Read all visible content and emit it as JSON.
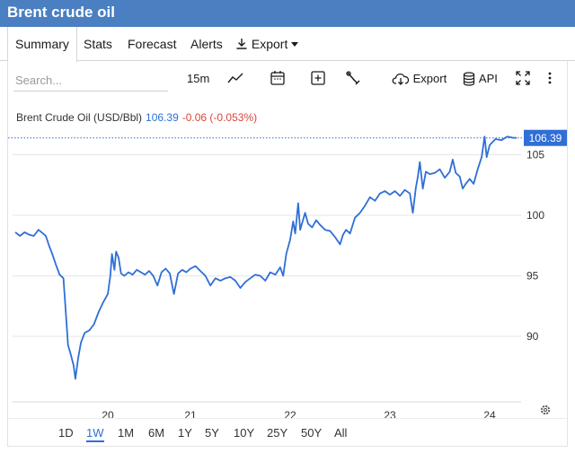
{
  "header": {
    "title": "Brent crude oil"
  },
  "tabs": [
    {
      "label": "Summary",
      "active": true
    },
    {
      "label": "Stats"
    },
    {
      "label": "Forecast"
    },
    {
      "label": "Alerts"
    },
    {
      "label": "Export"
    }
  ],
  "toolbar": {
    "search_placeholder": "Search...",
    "interval": "15m",
    "export_label": "Export",
    "api_label": "API",
    "icons": [
      "line-chart-icon",
      "calendar-icon",
      "plus-box-icon",
      "wrench-icon",
      "cloud-download-icon",
      "database-icon",
      "expand-icon",
      "more-vertical-icon"
    ]
  },
  "legend": {
    "instrument": "Brent Crude Oil (USD/Bbl)",
    "price": "106.39",
    "change": "-0.06 (-0.053%)"
  },
  "ranges": [
    "1D",
    "1W",
    "1M",
    "6M",
    "1Y",
    "5Y",
    "10Y",
    "25Y",
    "50Y",
    "All"
  ],
  "active_range": "1W",
  "colors": {
    "header": "#4a7fc1",
    "line": "#2f6fd6",
    "negative": "#d9443c"
  },
  "chart_data": {
    "type": "line",
    "title": "",
    "x_ticks": [
      "20",
      "21",
      "22",
      "23",
      "24"
    ],
    "y_ticks": [
      90,
      95,
      100,
      105
    ],
    "ylim": [
      85,
      108
    ],
    "xlim": [
      19.0,
      24.35
    ],
    "last_price_label": "106.39",
    "last_price": 106.39,
    "grid": "horizontal",
    "series": [
      {
        "values": [
          [
            19.0,
            98.6
          ],
          [
            19.05,
            98.3
          ],
          [
            19.1,
            98.6
          ],
          [
            19.15,
            98.4
          ],
          [
            19.2,
            98.3
          ],
          [
            19.25,
            98.8
          ],
          [
            19.3,
            98.5
          ],
          [
            19.33,
            98.3
          ],
          [
            19.36,
            97.6
          ],
          [
            19.4,
            96.8
          ],
          [
            19.44,
            95.9
          ],
          [
            19.48,
            95.1
          ],
          [
            19.52,
            94.8
          ],
          [
            19.55,
            91.5
          ],
          [
            19.57,
            89.3
          ],
          [
            19.6,
            88.5
          ],
          [
            19.63,
            87.6
          ],
          [
            19.65,
            86.5
          ],
          [
            19.68,
            88.2
          ],
          [
            19.71,
            89.5
          ],
          [
            19.75,
            90.3
          ],
          [
            19.8,
            90.5
          ],
          [
            19.85,
            91.0
          ],
          [
            19.9,
            92.0
          ],
          [
            19.95,
            92.8
          ],
          [
            20.0,
            93.5
          ],
          [
            20.03,
            95.0
          ],
          [
            20.05,
            96.8
          ],
          [
            20.08,
            95.5
          ],
          [
            20.1,
            97.0
          ],
          [
            20.13,
            96.5
          ],
          [
            20.16,
            95.2
          ],
          [
            20.2,
            95.0
          ],
          [
            20.25,
            95.3
          ],
          [
            20.3,
            95.1
          ],
          [
            20.35,
            95.5
          ],
          [
            20.4,
            95.3
          ],
          [
            20.45,
            95.1
          ],
          [
            20.5,
            95.4
          ],
          [
            20.55,
            95.0
          ],
          [
            20.6,
            94.2
          ],
          [
            20.65,
            95.3
          ],
          [
            20.7,
            95.6
          ],
          [
            20.75,
            95.2
          ],
          [
            20.8,
            93.5
          ],
          [
            20.85,
            95.2
          ],
          [
            20.9,
            95.5
          ],
          [
            20.95,
            95.3
          ],
          [
            21.0,
            95.6
          ],
          [
            21.05,
            95.8
          ],
          [
            21.1,
            95.4
          ],
          [
            21.15,
            95.0
          ],
          [
            21.2,
            94.2
          ],
          [
            21.25,
            94.8
          ],
          [
            21.3,
            94.6
          ],
          [
            21.35,
            94.8
          ],
          [
            21.4,
            94.9
          ],
          [
            21.45,
            94.6
          ],
          [
            21.5,
            94.0
          ],
          [
            21.55,
            94.5
          ],
          [
            21.6,
            94.8
          ],
          [
            21.65,
            95.1
          ],
          [
            21.7,
            95.0
          ],
          [
            21.75,
            94.6
          ],
          [
            21.8,
            95.3
          ],
          [
            21.85,
            95.1
          ],
          [
            21.9,
            95.7
          ],
          [
            21.93,
            95.0
          ],
          [
            21.96,
            96.8
          ],
          [
            22.0,
            98.0
          ],
          [
            22.03,
            99.5
          ],
          [
            22.05,
            98.5
          ],
          [
            22.08,
            101.0
          ],
          [
            22.1,
            98.8
          ],
          [
            22.15,
            100.2
          ],
          [
            22.18,
            99.3
          ],
          [
            22.22,
            99.0
          ],
          [
            22.26,
            99.6
          ],
          [
            22.3,
            99.2
          ],
          [
            22.35,
            98.8
          ],
          [
            22.4,
            98.7
          ],
          [
            22.45,
            98.2
          ],
          [
            22.5,
            97.6
          ],
          [
            22.53,
            98.4
          ],
          [
            22.56,
            98.8
          ],
          [
            22.6,
            98.5
          ],
          [
            22.65,
            99.8
          ],
          [
            22.7,
            100.2
          ],
          [
            22.75,
            100.8
          ],
          [
            22.8,
            101.5
          ],
          [
            22.85,
            101.2
          ],
          [
            22.9,
            101.8
          ],
          [
            22.95,
            102.0
          ],
          [
            23.0,
            101.7
          ],
          [
            23.05,
            102.0
          ],
          [
            23.1,
            101.6
          ],
          [
            23.15,
            102.1
          ],
          [
            23.2,
            101.8
          ],
          [
            23.23,
            100.2
          ],
          [
            23.26,
            102.3
          ],
          [
            23.28,
            103.2
          ],
          [
            23.3,
            104.4
          ],
          [
            23.33,
            102.2
          ],
          [
            23.36,
            103.6
          ],
          [
            23.4,
            103.4
          ],
          [
            23.45,
            103.5
          ],
          [
            23.5,
            103.8
          ],
          [
            23.55,
            103.1
          ],
          [
            23.6,
            103.6
          ],
          [
            23.63,
            104.6
          ],
          [
            23.66,
            103.5
          ],
          [
            23.7,
            103.2
          ],
          [
            23.73,
            102.2
          ],
          [
            23.76,
            102.6
          ],
          [
            23.8,
            103.0
          ],
          [
            23.84,
            102.6
          ],
          [
            23.88,
            103.8
          ],
          [
            23.92,
            104.8
          ],
          [
            23.95,
            106.5
          ],
          [
            23.97,
            104.8
          ],
          [
            24.0,
            105.8
          ],
          [
            24.05,
            106.3
          ],
          [
            24.1,
            106.2
          ],
          [
            24.15,
            106.5
          ],
          [
            24.2,
            106.4
          ],
          [
            24.23,
            106.39
          ]
        ]
      }
    ]
  }
}
